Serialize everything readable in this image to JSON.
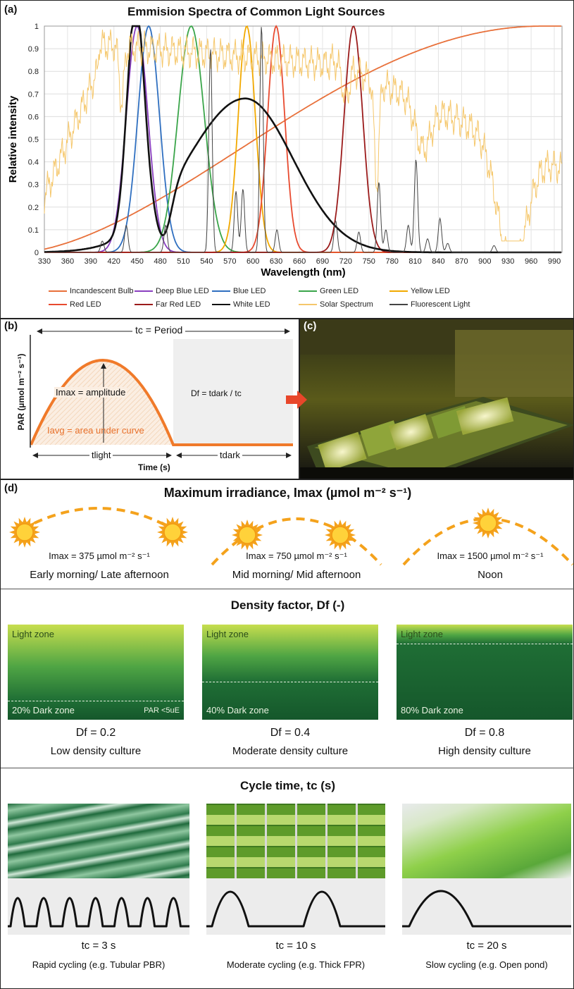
{
  "panel_a": {
    "tag": "(a)",
    "chart_data": {
      "type": "line",
      "title": "Emmision Spectra of Common Light Sources",
      "xlabel": "Wavelength (nm)",
      "ylabel": "Relative intensity",
      "xlim": [
        330,
        1000
      ],
      "ylim": [
        0,
        1
      ],
      "xticks": [
        330,
        360,
        390,
        420,
        450,
        480,
        510,
        540,
        570,
        600,
        630,
        660,
        690,
        720,
        750,
        780,
        810,
        840,
        870,
        900,
        930,
        960,
        990
      ],
      "yticks": [
        0,
        0.1,
        0.2,
        0.3,
        0.4,
        0.5,
        0.6,
        0.7,
        0.8,
        0.9,
        1
      ],
      "grid": true,
      "legend_position": "bottom",
      "series": [
        {
          "name": "Incandescent Bulb",
          "color": "#e8703a",
          "kind": "incandescent"
        },
        {
          "name": "Deep Blue LED",
          "color": "#8a3fc0",
          "kind": "peak",
          "center": 450,
          "width": 14,
          "height": 1.0
        },
        {
          "name": "Blue LED",
          "color": "#2f6fc0",
          "kind": "peak",
          "center": 465,
          "width": 14,
          "height": 1.0
        },
        {
          "name": "Green LED",
          "color": "#3aa54a",
          "kind": "peak",
          "center": 520,
          "width": 17,
          "height": 1.0
        },
        {
          "name": "Yellow LED",
          "color": "#f2a900",
          "kind": "peak",
          "center": 592,
          "width": 11,
          "height": 1.0
        },
        {
          "name": "Red LED",
          "color": "#e84a2f",
          "kind": "peak",
          "center": 630,
          "width": 11,
          "height": 1.0
        },
        {
          "name": "Far Red LED",
          "color": "#9b1b1b",
          "kind": "peak",
          "center": 730,
          "width": 12,
          "height": 1.0
        },
        {
          "name": "White LED",
          "color": "#111111",
          "kind": "white"
        },
        {
          "name": "Solar Spectrum",
          "color": "#f5c76b",
          "kind": "solar"
        },
        {
          "name": "Fluorescent Light",
          "color": "#444444",
          "kind": "fluor",
          "lines": [
            [
              405,
              0.05
            ],
            [
              436,
              0.12
            ],
            [
              487,
              0.12
            ],
            [
              545,
              0.9
            ],
            [
              578,
              0.27
            ],
            [
              587,
              0.28
            ],
            [
              611,
              1.0
            ],
            [
              631,
              0.1
            ],
            [
              707,
              0.14
            ],
            [
              737,
              0.09
            ],
            [
              763,
              0.31
            ],
            [
              772,
              0.1
            ],
            [
              801,
              0.12
            ],
            [
              811,
              0.41
            ],
            [
              826,
              0.06
            ],
            [
              842,
              0.15
            ],
            [
              852,
              0.04
            ],
            [
              912,
              0.03
            ]
          ]
        }
      ]
    }
  },
  "panel_b": {
    "tag": "(b)",
    "period_label": "tc = Period",
    "tc_sub": "c",
    "ylabel": "PAR (µmol m⁻² s⁻¹)",
    "xlabel": "Time (s)",
    "imax_label": "Imax = amplitude",
    "iavg_label": "Iavg = area under curve",
    "df_label": "Df = tdark / tc",
    "tlight": "tlight",
    "tdark": "tdark"
  },
  "panel_c": {
    "tag": "(c)"
  },
  "panel_d": {
    "tag": "(d)",
    "irradiance": {
      "title": "Maximum irradiance, Imax (µmol m⁻² s⁻¹)",
      "items": [
        {
          "value": "Imax = 375 µmol m⁻² s⁻¹",
          "caption": "Early morning/ Late afternoon"
        },
        {
          "value": "Imax = 750 µmol m⁻² s⁻¹",
          "caption": "Mid morning/ Mid afternoon"
        },
        {
          "value": "Imax = 1500 µmol m⁻² s⁻¹",
          "caption": "Noon"
        }
      ]
    },
    "density": {
      "title": "Density factor, Df (-)",
      "light_zone": "Light zone",
      "par_note": "PAR <5uE",
      "items": [
        {
          "dark": "20% Dark zone",
          "df": "Df = 0.2",
          "caption": "Low density culture",
          "dark_fraction": 0.2
        },
        {
          "dark": "40% Dark zone",
          "df": "Df = 0.4",
          "caption": "Moderate density culture",
          "dark_fraction": 0.4
        },
        {
          "dark": "80% Dark zone",
          "df": "Df = 0.8",
          "caption": "High density culture",
          "dark_fraction": 0.8
        }
      ]
    },
    "cycle": {
      "title": "Cycle time, tc (s)",
      "items": [
        {
          "tc": "tc = 3 s",
          "caption": "Rapid cycling (e.g. Tubular PBR)",
          "pulses": 7
        },
        {
          "tc": "tc = 10 s",
          "caption": "Moderate cycling (e.g. Thick FPR)",
          "pulses": 2
        },
        {
          "tc": "tc = 20 s",
          "caption": "Slow cycling (e.g. Open pond)",
          "pulses": 1
        }
      ]
    }
  }
}
